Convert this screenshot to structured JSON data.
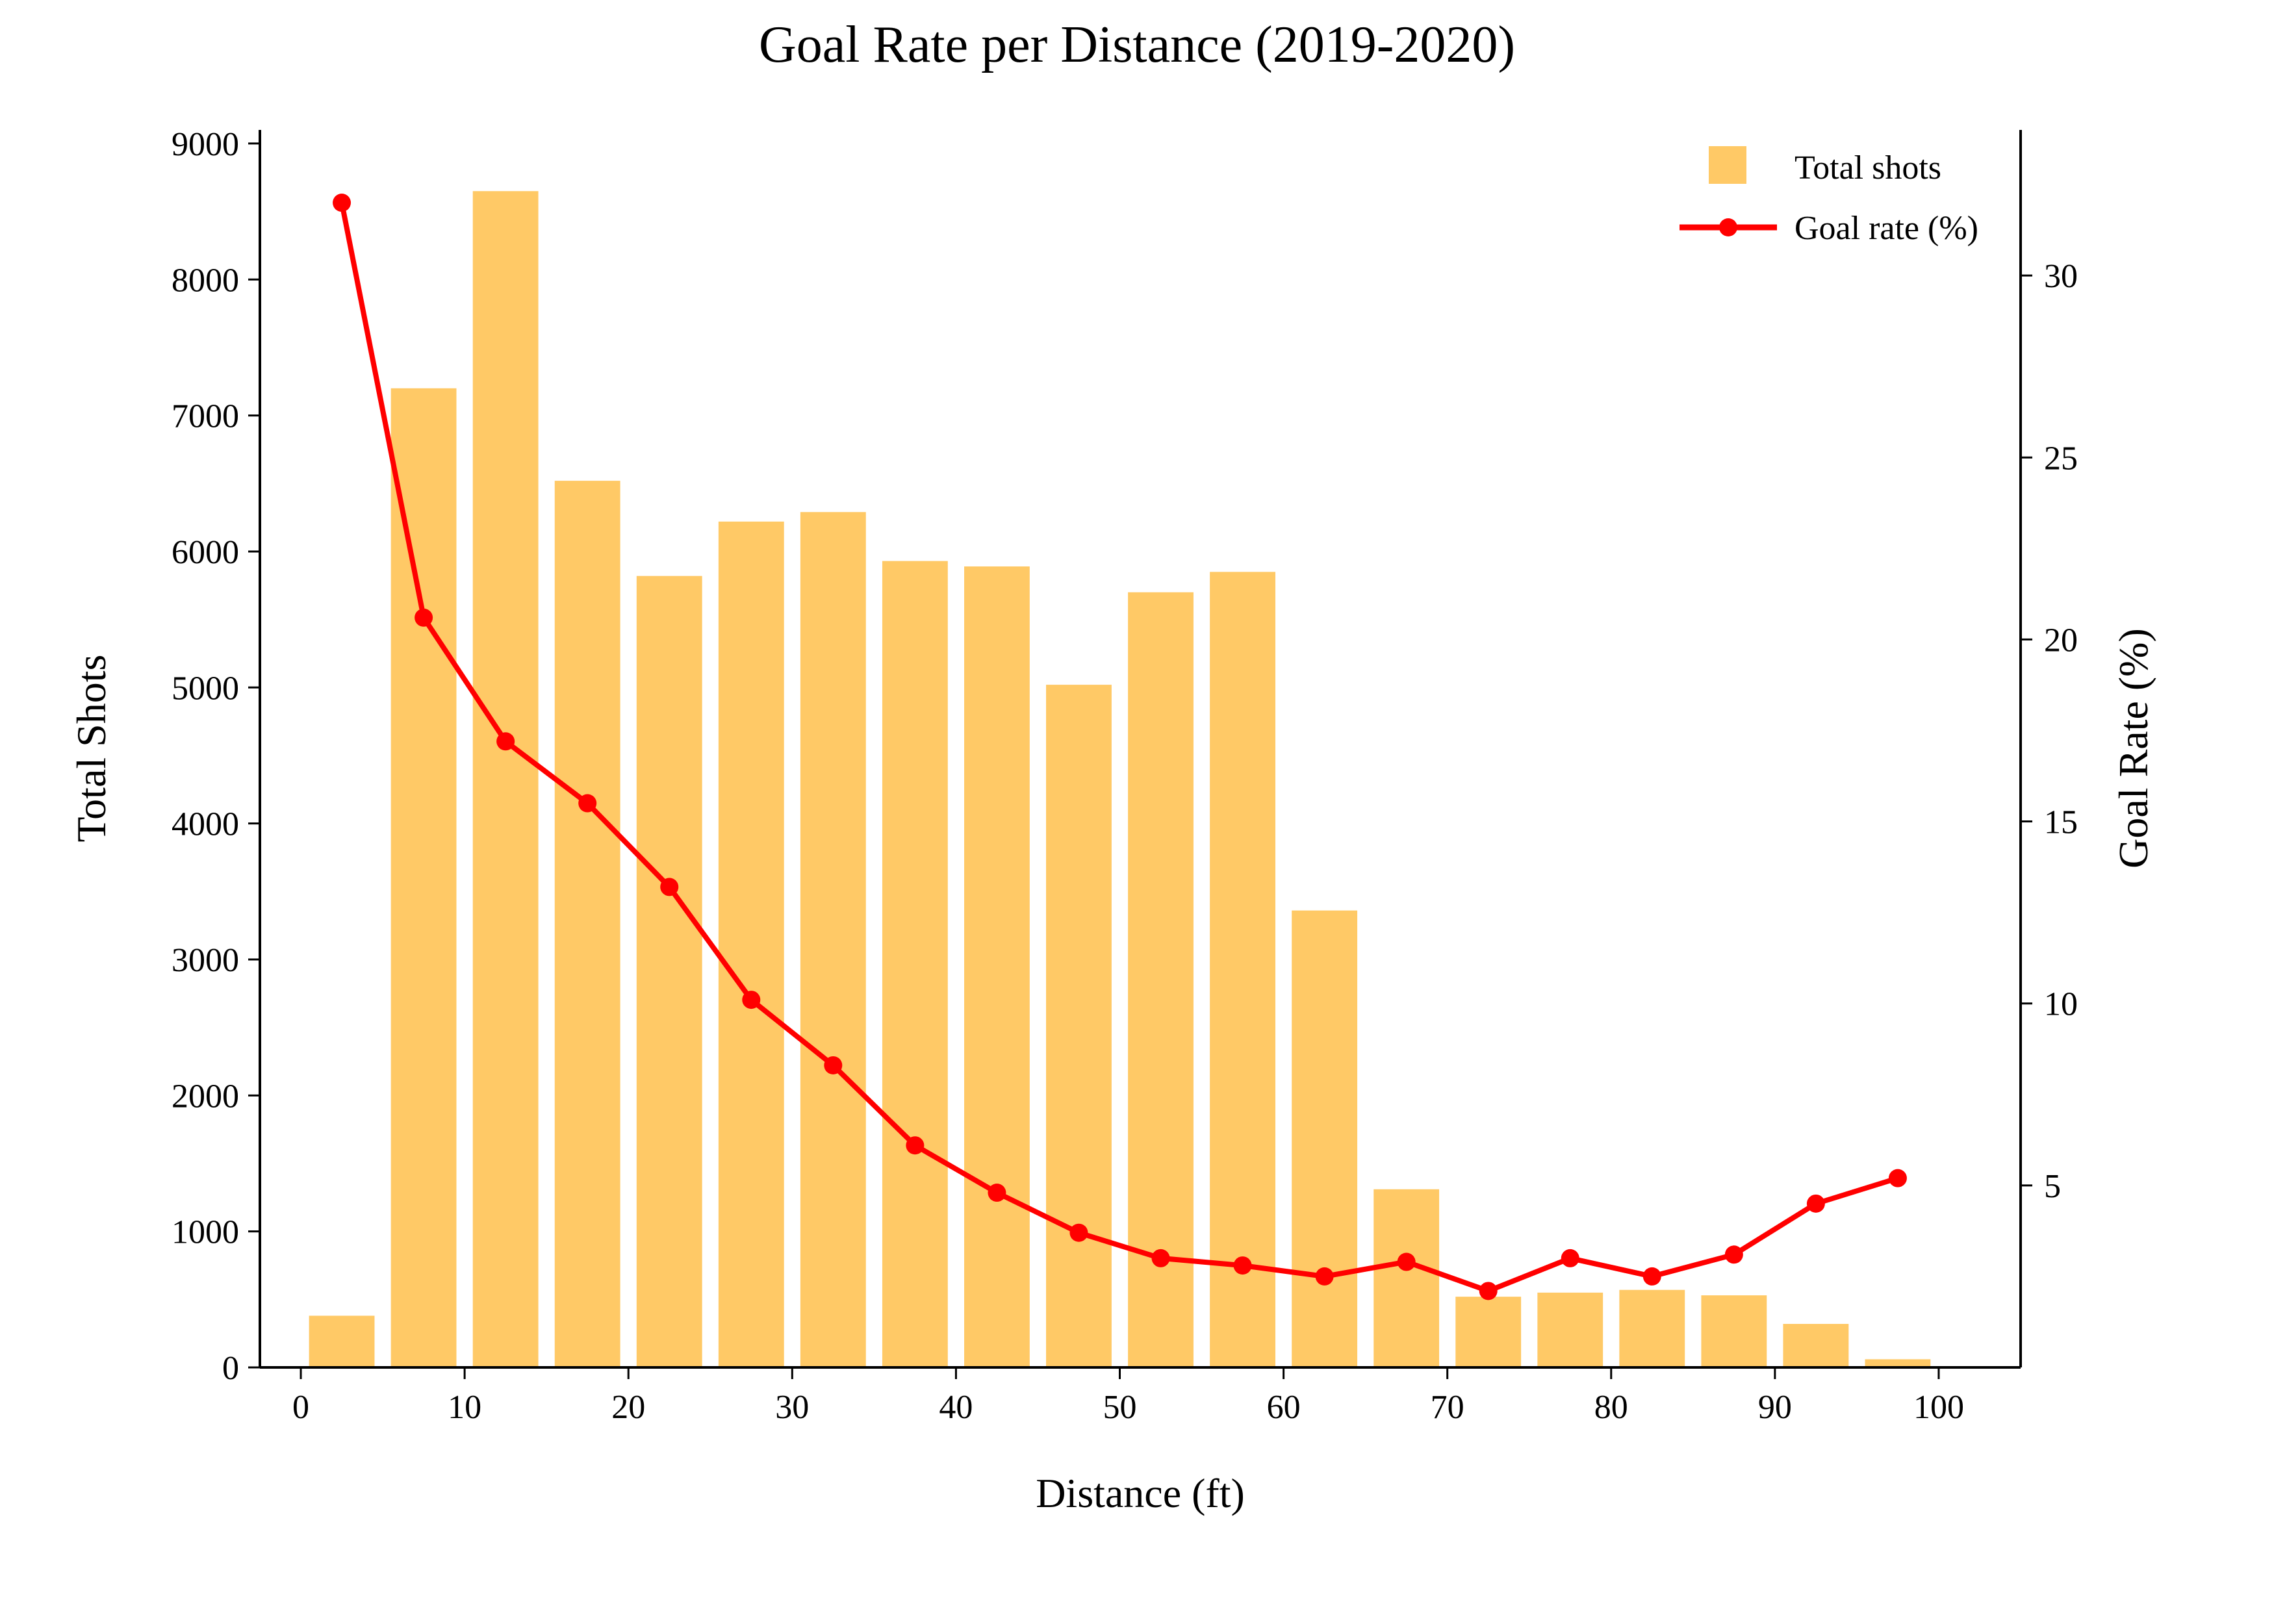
{
  "chart_data": {
    "type": "bar",
    "title": "Goal Rate per Distance (2019-2020)",
    "xlabel": "Distance (ft)",
    "ylabel": "Total Shots",
    "y2label": "Goal Rate (%)",
    "xlim": [
      -2.5,
      105
    ],
    "ylim": [
      0,
      9100
    ],
    "y2lim": [
      0,
      34
    ],
    "xticks": [
      0,
      10,
      20,
      30,
      40,
      50,
      60,
      70,
      80,
      90,
      100
    ],
    "yticks": [
      0,
      1000,
      2000,
      3000,
      4000,
      5000,
      6000,
      7000,
      8000,
      9000
    ],
    "y2ticks": [
      5,
      10,
      15,
      20,
      25,
      30
    ],
    "grid": false,
    "legend_position": "top-right",
    "x": [
      2.5,
      7.5,
      12.5,
      17.5,
      22.5,
      27.5,
      32.5,
      37.5,
      42.5,
      47.5,
      52.5,
      57.5,
      62.5,
      67.5,
      72.5,
      77.5,
      82.5,
      87.5,
      92.5,
      97.5
    ],
    "series": [
      {
        "name": "Total shots",
        "kind": "bar",
        "axis": "left",
        "color": "#FFC966",
        "values": [
          380,
          7200,
          8650,
          6520,
          5820,
          6220,
          6290,
          5930,
          5890,
          5020,
          5700,
          5850,
          3360,
          1310,
          520,
          550,
          570,
          530,
          320,
          60
        ]
      },
      {
        "name": "Goal rate (%)",
        "kind": "line",
        "axis": "right",
        "color": "#FF0000",
        "values": [
          32.0,
          20.6,
          17.2,
          15.5,
          13.2,
          10.1,
          8.3,
          6.1,
          4.8,
          3.7,
          3.0,
          2.8,
          2.5,
          2.9,
          2.1,
          3.0,
          2.5,
          3.1,
          4.5,
          5.2
        ]
      }
    ]
  }
}
